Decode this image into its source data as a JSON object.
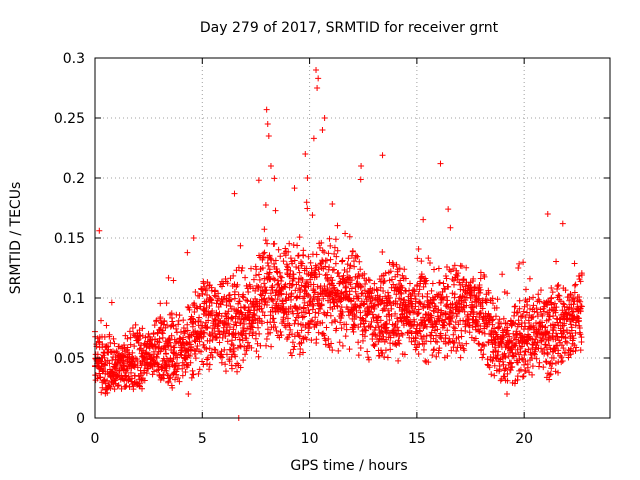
{
  "chart_data": {
    "type": "scatter",
    "title": "Day 279 of 2017, SRMTID for receiver grnt",
    "xlabel": "GPS time / hours",
    "ylabel": "SRMTID / TECUs",
    "xlim": [
      0,
      24
    ],
    "ylim": [
      0,
      0.3
    ],
    "xticks": [
      0,
      5,
      10,
      15,
      20
    ],
    "yticks": [
      0,
      0.05,
      0.1,
      0.15,
      0.2,
      0.25,
      0.3
    ],
    "xtick_labels": [
      "0",
      "5",
      "10",
      "15",
      "20"
    ],
    "ytick_labels": [
      "0",
      "0.05",
      "0.1",
      "0.15",
      "0.2",
      "0.25",
      "0.3"
    ],
    "grid": true,
    "legend": "none",
    "marker": "+",
    "color": "#ff0000",
    "time_step_hours": 0.04,
    "approximate_envelope": {
      "description": "Per-hour approximate range of plotted SRMTID values (TECU) read from the figure",
      "hours": [
        0,
        1,
        2,
        3,
        4,
        5,
        6,
        7,
        8,
        9,
        10,
        11,
        12,
        13,
        14,
        15,
        16,
        17,
        18,
        19,
        20,
        21,
        22,
        22.7
      ],
      "center": [
        0.045,
        0.045,
        0.048,
        0.055,
        0.06,
        0.075,
        0.075,
        0.085,
        0.105,
        0.1,
        0.105,
        0.1,
        0.095,
        0.09,
        0.09,
        0.085,
        0.09,
        0.09,
        0.085,
        0.06,
        0.065,
        0.07,
        0.08,
        0.09
      ],
      "spread": [
        0.025,
        0.025,
        0.025,
        0.03,
        0.035,
        0.04,
        0.04,
        0.045,
        0.05,
        0.05,
        0.05,
        0.045,
        0.045,
        0.045,
        0.045,
        0.04,
        0.045,
        0.04,
        0.04,
        0.035,
        0.035,
        0.04,
        0.04,
        0.04
      ]
    },
    "notable_points": [
      {
        "x": 10.3,
        "y": 0.29
      },
      {
        "x": 10.4,
        "y": 0.283
      },
      {
        "x": 10.35,
        "y": 0.275
      },
      {
        "x": 10.7,
        "y": 0.25
      },
      {
        "x": 10.6,
        "y": 0.24
      },
      {
        "x": 8.0,
        "y": 0.257
      },
      {
        "x": 8.05,
        "y": 0.245
      },
      {
        "x": 8.1,
        "y": 0.235
      },
      {
        "x": 9.8,
        "y": 0.22
      },
      {
        "x": 10.2,
        "y": 0.233
      },
      {
        "x": 13.4,
        "y": 0.219
      },
      {
        "x": 16.1,
        "y": 0.212
      },
      {
        "x": 12.4,
        "y": 0.21
      },
      {
        "x": 8.2,
        "y": 0.21
      },
      {
        "x": 9.9,
        "y": 0.2
      },
      {
        "x": 6.5,
        "y": 0.187
      },
      {
        "x": 21.1,
        "y": 0.17
      },
      {
        "x": 21.8,
        "y": 0.162
      },
      {
        "x": 0.2,
        "y": 0.156
      },
      {
        "x": 4.6,
        "y": 0.15
      },
      {
        "x": 4.35,
        "y": 0.02
      },
      {
        "x": 6.7,
        "y": 0.0
      },
      {
        "x": 19.2,
        "y": 0.02
      }
    ]
  }
}
